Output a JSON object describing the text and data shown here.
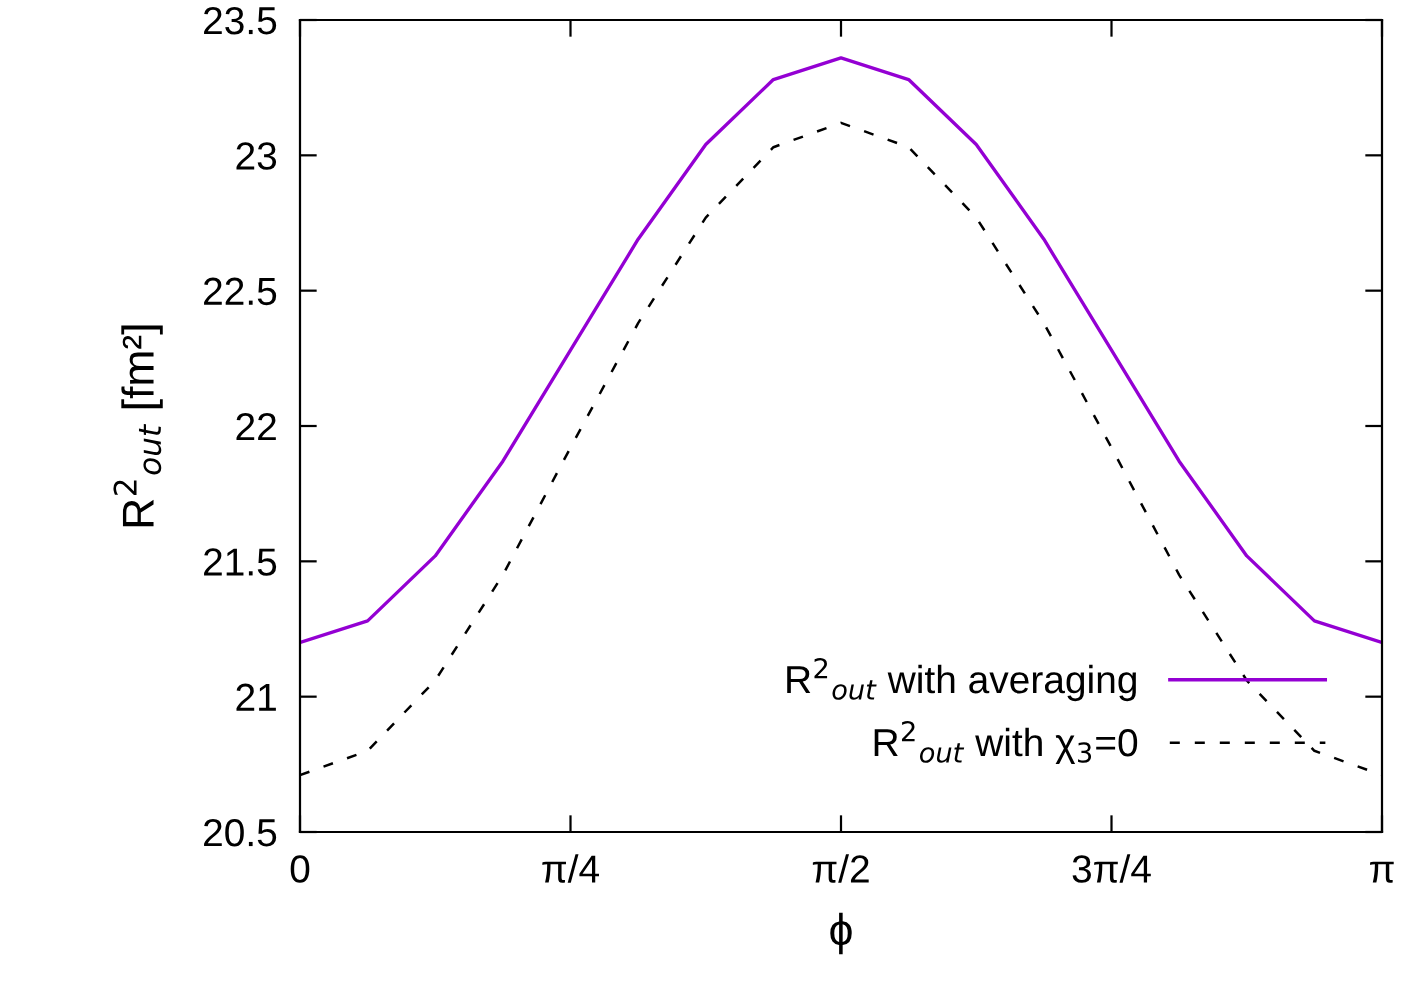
{
  "chart_data": {
    "type": "line",
    "xlabel": "ϕ",
    "ylabel": "R$^{2}$$_{out}$ [fm²]",
    "x": [
      0,
      0.19635,
      0.3927,
      0.58905,
      0.7854,
      0.98175,
      1.1781,
      1.37445,
      1.5708,
      1.76715,
      1.9635,
      2.15985,
      2.3562,
      2.55255,
      2.7489,
      2.94525,
      3.14159
    ],
    "series": [
      {
        "name": "R$^{2}$$_{out}$ with averaging",
        "color": "#9400d3",
        "line_style": "solid",
        "values": [
          21.2,
          21.28,
          21.52,
          21.87,
          22.28,
          22.69,
          23.04,
          23.28,
          23.36,
          23.28,
          23.04,
          22.69,
          22.28,
          21.87,
          21.52,
          21.28,
          21.2
        ]
      },
      {
        "name": "R$^{2}$$_{out}$ with χ$_{3}$=0",
        "color": "#000000",
        "line_style": "dashed",
        "values": [
          20.71,
          20.8,
          21.06,
          21.45,
          21.92,
          22.38,
          22.77,
          23.03,
          23.12,
          23.03,
          22.77,
          22.38,
          21.92,
          21.45,
          21.06,
          20.8,
          20.71
        ]
      }
    ],
    "xlim": [
      0,
      3.14159
    ],
    "xticks": [
      0,
      {
        "value": 0.7854,
        "label": "π/4"
      },
      {
        "value": 1.5708,
        "label": "π/2"
      },
      {
        "value": 2.3562,
        "label": "3π/4"
      },
      {
        "value": 3.14159,
        "label": "π"
      }
    ],
    "ylim": [
      20.5,
      23.5
    ],
    "yticks": [
      20.5,
      21,
      21.5,
      22,
      22.5,
      23,
      23.5
    ],
    "legend": "bottom right",
    "grid": false
  }
}
